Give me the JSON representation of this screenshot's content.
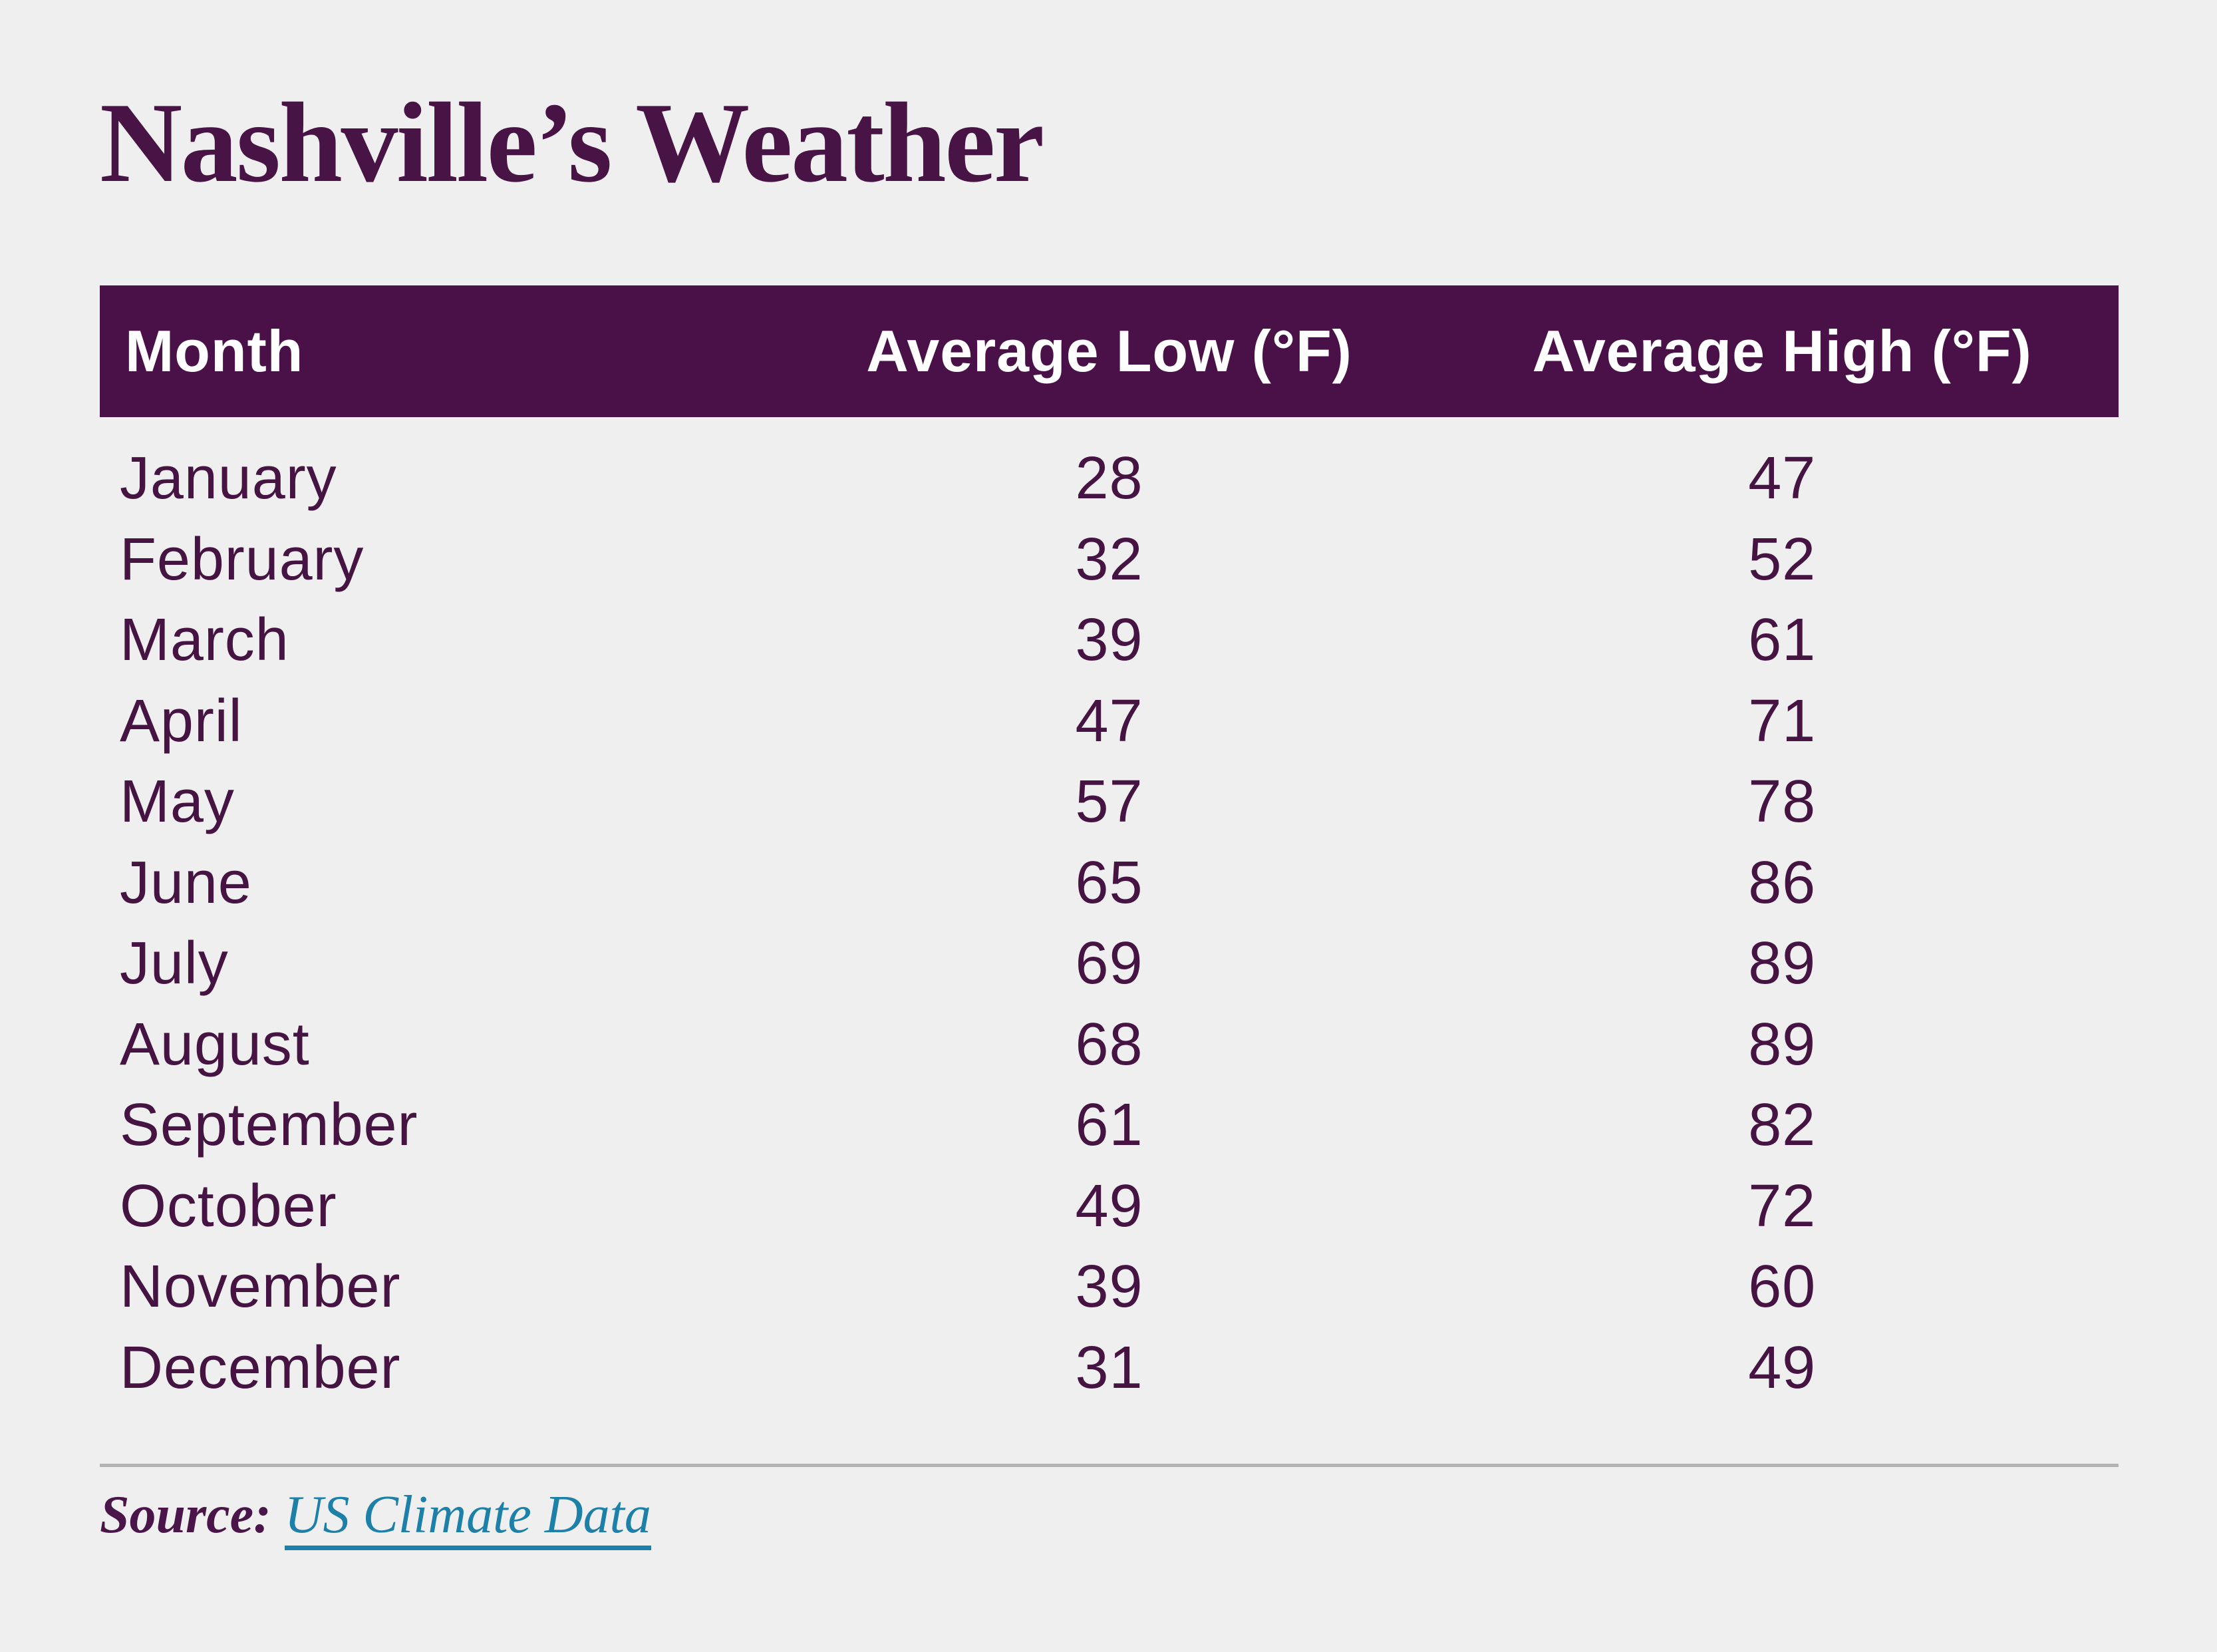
{
  "title": "Nashville’s Weather",
  "colors": {
    "background": "#f0eff0",
    "header_background": "#4a1149",
    "title_text": "#481345",
    "row_text": "#451442",
    "link": "#1c80a8",
    "divider": "#b3b3b3",
    "header_text": "#ffffff"
  },
  "table": {
    "columns": [
      "Month",
      "Average Low (°F)",
      "Average High (°F)"
    ],
    "rows": [
      {
        "month": "January",
        "low": "28",
        "high": "47"
      },
      {
        "month": "February",
        "low": "32",
        "high": "52"
      },
      {
        "month": "March",
        "low": "39",
        "high": "61"
      },
      {
        "month": "April",
        "low": "47",
        "high": "71"
      },
      {
        "month": "May",
        "low": "57",
        "high": "78"
      },
      {
        "month": "June",
        "low": "65",
        "high": "86"
      },
      {
        "month": "July",
        "low": "69",
        "high": "89"
      },
      {
        "month": "August",
        "low": "68",
        "high": "89"
      },
      {
        "month": "September",
        "low": "61",
        "high": "82"
      },
      {
        "month": "October",
        "low": "49",
        "high": "72"
      },
      {
        "month": "November",
        "low": "39",
        "high": "60"
      },
      {
        "month": "December",
        "low": "31",
        "high": "49"
      }
    ]
  },
  "footer": {
    "source_label": "Source:",
    "link_text": "US Climate Data"
  },
  "chart_data": {
    "type": "table",
    "title": "Nashville's Weather",
    "columns": [
      "Month",
      "Average Low (°F)",
      "Average High (°F)"
    ],
    "rows": [
      [
        "January",
        28,
        47
      ],
      [
        "February",
        32,
        52
      ],
      [
        "March",
        39,
        61
      ],
      [
        "April",
        47,
        71
      ],
      [
        "May",
        57,
        78
      ],
      [
        "June",
        65,
        86
      ],
      [
        "July",
        69,
        89
      ],
      [
        "August",
        68,
        89
      ],
      [
        "September",
        61,
        82
      ],
      [
        "October",
        49,
        72
      ],
      [
        "November",
        39,
        60
      ],
      [
        "December",
        31,
        49
      ]
    ],
    "source": "US Climate Data"
  }
}
